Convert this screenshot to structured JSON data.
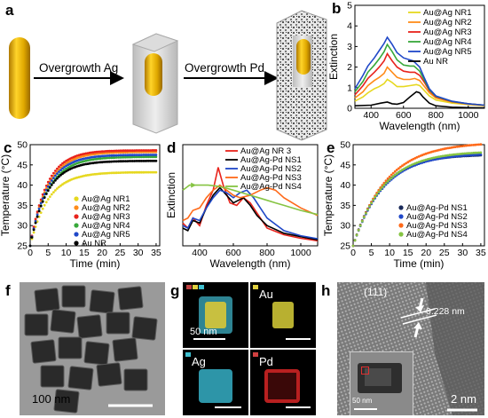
{
  "panel_labels": {
    "a": "a",
    "b": "b",
    "c": "c",
    "d": "d",
    "e": "e",
    "f": "f",
    "g": "g",
    "h": "h"
  },
  "schematic": {
    "step1": "Overgrowth Ag",
    "step2": "Overgrowth  Pd"
  },
  "colors": {
    "yellow": "#e6d820",
    "orange": "#ff8c1a",
    "red": "#e8231c",
    "green": "#37a83a",
    "blue": "#2048c8",
    "black": "#000000",
    "lime": "#86c443",
    "gold": "#d9a400"
  },
  "chart_data": [
    {
      "panel": "b",
      "type": "line",
      "xlabel": "Wavelength (nm)",
      "ylabel": "Extinction",
      "xlim": [
        300,
        1100
      ],
      "ylim": [
        0,
        5
      ],
      "xticks": [
        400,
        600,
        800,
        1000
      ],
      "yticks": [
        0,
        1,
        2,
        3,
        4,
        5
      ],
      "series": [
        {
          "name": "Au@Ag NR1",
          "color": "#e6d820",
          "x": [
            300,
            350,
            380,
            420,
            450,
            480,
            500,
            530,
            560,
            600,
            640,
            680,
            700,
            730,
            760,
            800,
            900,
            1000,
            1100
          ],
          "y": [
            0.35,
            0.55,
            0.75,
            0.95,
            1.05,
            1.2,
            1.4,
            1.25,
            1.05,
            1.05,
            1.1,
            1.15,
            1.1,
            0.85,
            0.6,
            0.4,
            0.25,
            0.18,
            0.12
          ]
        },
        {
          "name": "Au@Ag NR2",
          "color": "#ff8c1a",
          "x": [
            300,
            350,
            380,
            420,
            450,
            480,
            500,
            530,
            560,
            600,
            640,
            670,
            700,
            730,
            760,
            800,
            900,
            1000,
            1100
          ],
          "y": [
            0.5,
            0.8,
            1.1,
            1.35,
            1.5,
            1.7,
            2.0,
            1.75,
            1.5,
            1.4,
            1.4,
            1.45,
            1.35,
            1.05,
            0.75,
            0.5,
            0.3,
            0.2,
            0.14
          ]
        },
        {
          "name": "Au@Ag NR3",
          "color": "#e8231c",
          "x": [
            300,
            350,
            380,
            420,
            450,
            480,
            500,
            530,
            560,
            600,
            640,
            670,
            700,
            730,
            760,
            800,
            900,
            1000,
            1100
          ],
          "y": [
            0.65,
            1.1,
            1.45,
            1.75,
            2.0,
            2.3,
            2.65,
            2.3,
            2.0,
            1.8,
            1.75,
            1.75,
            1.6,
            1.25,
            0.85,
            0.55,
            0.32,
            0.22,
            0.15
          ]
        },
        {
          "name": "Au@Ag NR4",
          "color": "#37a83a",
          "x": [
            300,
            350,
            380,
            420,
            450,
            480,
            500,
            530,
            560,
            600,
            640,
            665,
            700,
            730,
            760,
            800,
            900,
            1000,
            1100
          ],
          "y": [
            0.8,
            1.3,
            1.75,
            2.1,
            2.4,
            2.75,
            3.1,
            2.75,
            2.35,
            2.1,
            2.05,
            2.05,
            1.8,
            1.35,
            0.9,
            0.58,
            0.33,
            0.22,
            0.15
          ]
        },
        {
          "name": "Au@Ag NR5",
          "color": "#2048c8",
          "x": [
            300,
            350,
            380,
            420,
            450,
            480,
            500,
            530,
            560,
            600,
            640,
            660,
            700,
            730,
            760,
            800,
            900,
            1000,
            1100
          ],
          "y": [
            0.95,
            1.6,
            2.05,
            2.45,
            2.8,
            3.15,
            3.45,
            3.1,
            2.7,
            2.45,
            2.35,
            2.3,
            2.0,
            1.45,
            0.95,
            0.6,
            0.34,
            0.22,
            0.15
          ]
        },
        {
          "name": "Au NR",
          "color": "#000000",
          "x": [
            300,
            400,
            460,
            500,
            530,
            560,
            600,
            640,
            680,
            700,
            720,
            760,
            800,
            900,
            1000,
            1100
          ],
          "y": [
            0.12,
            0.15,
            0.25,
            0.3,
            0.22,
            0.2,
            0.28,
            0.55,
            0.8,
            0.75,
            0.55,
            0.25,
            0.12,
            0.05,
            0.03,
            0.02
          ]
        }
      ]
    },
    {
      "panel": "c",
      "type": "scatter",
      "xlabel": "Time (min)",
      "ylabel": "Temperature (°C)",
      "xlim": [
        0,
        36
      ],
      "ylim": [
        25,
        50
      ],
      "xticks": [
        0,
        5,
        10,
        15,
        20,
        25,
        30,
        35
      ],
      "yticks": [
        25,
        30,
        35,
        40,
        45,
        50
      ],
      "series": [
        {
          "name": "Au@Ag NR1",
          "color": "#e6d820",
          "plateau": 43.2,
          "k": 0.2
        },
        {
          "name": "Au@Ag NR2",
          "color": "#ff8c1a",
          "plateau": 48.2,
          "k": 0.21
        },
        {
          "name": "Au@Ag NR3",
          "color": "#e8231c",
          "plateau": 48.6,
          "k": 0.22
        },
        {
          "name": "Au@Ag NR4",
          "color": "#37a83a",
          "plateau": 47.0,
          "k": 0.2
        },
        {
          "name": "Au@Ag NR5",
          "color": "#2048c8",
          "plateau": 47.5,
          "k": 0.21
        },
        {
          "name": "Au NR",
          "color": "#000000",
          "plateau": 46.0,
          "k": 0.21
        }
      ]
    },
    {
      "panel": "d",
      "type": "line",
      "xlabel": "Wavelength (nm)",
      "ylabel": "Extinction",
      "xlim": [
        300,
        1100
      ],
      "xticks": [
        400,
        600,
        800,
        1000
      ],
      "series": [
        {
          "name": "Au@Ag NR 3",
          "color": "#e8231c",
          "x": [
            300,
            330,
            360,
            400,
            440,
            480,
            510,
            540,
            580,
            620,
            660,
            700,
            740,
            800,
            900,
            1000,
            1100
          ],
          "y": [
            0.45,
            0.35,
            0.55,
            0.4,
            0.8,
            1.1,
            1.55,
            1.2,
            0.85,
            0.8,
            0.95,
            0.85,
            0.65,
            0.35,
            0.22,
            0.15,
            0.1
          ]
        },
        {
          "name": "Au@Ag-Pd NS1",
          "color": "#000000",
          "x": [
            300,
            330,
            360,
            400,
            440,
            480,
            520,
            560,
            600,
            630,
            660,
            700,
            740,
            800,
            900,
            1000,
            1100
          ],
          "y": [
            0.35,
            0.3,
            0.5,
            0.45,
            0.75,
            1.0,
            1.15,
            1.0,
            0.85,
            0.9,
            0.95,
            0.8,
            0.6,
            0.4,
            0.25,
            0.18,
            0.12
          ]
        },
        {
          "name": "Au@Ag-Pd NS2",
          "color": "#2048c8",
          "x": [
            300,
            330,
            360,
            400,
            440,
            480,
            520,
            560,
            600,
            640,
            680,
            720,
            760,
            800,
            900,
            1000,
            1100
          ],
          "y": [
            0.4,
            0.35,
            0.55,
            0.5,
            0.75,
            0.95,
            1.1,
            1.05,
            0.95,
            1.05,
            1.1,
            0.95,
            0.75,
            0.55,
            0.3,
            0.2,
            0.14
          ]
        },
        {
          "name": "Au@Ag-Pd NS3",
          "color": "#ff6a1a",
          "x": [
            300,
            330,
            360,
            400,
            440,
            480,
            520,
            560,
            600,
            640,
            700,
            760,
            800,
            850,
            900,
            1000,
            1100
          ],
          "y": [
            0.5,
            0.55,
            0.7,
            0.75,
            0.95,
            1.1,
            1.2,
            1.1,
            1.0,
            0.95,
            1.0,
            1.1,
            1.15,
            1.1,
            0.95,
            0.75,
            0.6
          ]
        },
        {
          "name": "Au@Ag-Pd NS4",
          "color": "#86c443",
          "x": [
            300,
            320,
            340,
            360,
            400,
            450,
            500,
            550,
            600,
            650,
            700,
            750,
            800,
            850,
            900,
            1000,
            1100
          ],
          "y": [
            1.1,
            1.15,
            1.2,
            1.2,
            1.2,
            1.2,
            1.18,
            1.15,
            1.1,
            1.05,
            1.0,
            0.95,
            0.9,
            0.85,
            0.8,
            0.7,
            0.62
          ]
        }
      ]
    },
    {
      "panel": "e",
      "type": "scatter",
      "xlabel": "Time (min)",
      "ylabel": "Temperature (°C)",
      "xlim": [
        0,
        36
      ],
      "ylim": [
        25,
        50
      ],
      "xticks": [
        0,
        5,
        10,
        15,
        20,
        25,
        30,
        35
      ],
      "yticks": [
        25,
        30,
        35,
        40,
        45,
        50
      ],
      "series": [
        {
          "name": "Au@Ag-Pd NS1",
          "color": "#1a2a5a",
          "plateau": 47.6,
          "k": 0.13
        },
        {
          "name": "Au@Ag-Pd NS2",
          "color": "#2048c8",
          "plateau": 47.9,
          "k": 0.12
        },
        {
          "name": "Au@Ag-Pd NS3",
          "color": "#ff6a1a",
          "plateau": 50.6,
          "k": 0.11
        },
        {
          "name": "Au@Ag-Pd NS4",
          "color": "#86c443",
          "plateau": 48.4,
          "k": 0.12
        }
      ]
    }
  ],
  "micrographs": {
    "f_scale": "100 nm",
    "g_scale": "50 nm",
    "g_labels": [
      "Au",
      "Ag",
      "Pd"
    ],
    "h_facet": "(111)",
    "h_spacing": "0.228 nm",
    "h_inset_scale": "50 nm",
    "h_scale": "2 nm"
  }
}
